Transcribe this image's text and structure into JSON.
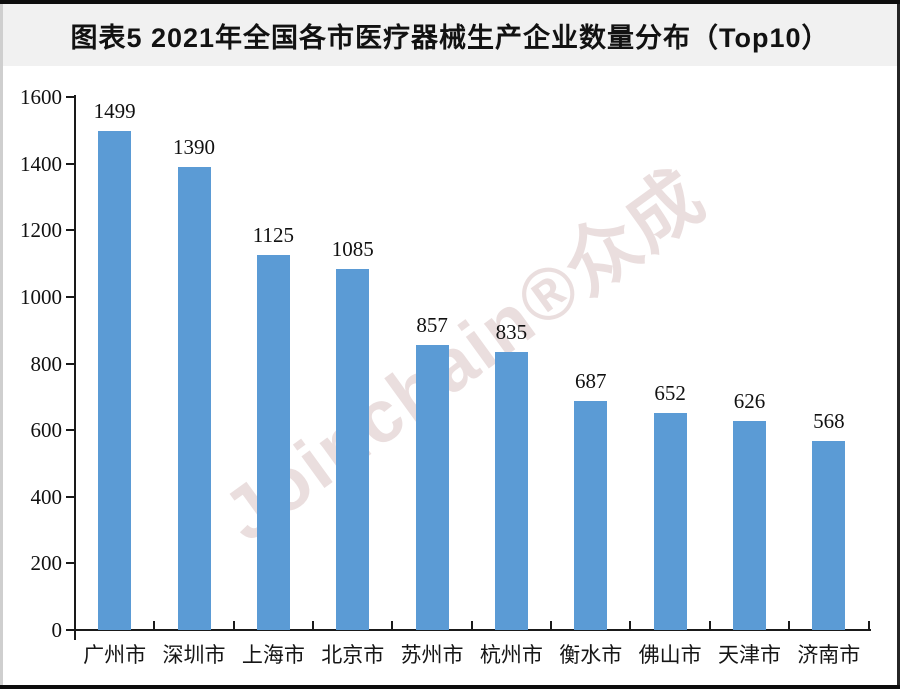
{
  "page": {
    "header_title": "图表5 2021年全国各市医疗器械生产企业数量分布（Top10）",
    "watermark": "Joinchain®众成",
    "header_background": "#f1f1f1",
    "background": "#ffffff"
  },
  "chart_data": {
    "type": "bar",
    "title": "图表5 2021年全国各市医疗器械生产企业数量分布（Top10）",
    "categories": [
      "广州市",
      "深圳市",
      "上海市",
      "北京市",
      "苏州市",
      "杭州市",
      "衡水市",
      "佛山市",
      "天津市",
      "济南市"
    ],
    "values": [
      1499,
      1390,
      1125,
      1085,
      857,
      835,
      687,
      652,
      626,
      568
    ],
    "ylim": [
      0,
      1600
    ],
    "yticks": [
      0,
      200,
      400,
      600,
      800,
      1000,
      1200,
      1400,
      1600
    ],
    "xlabel": "",
    "ylabel": "",
    "grid": false,
    "legend": "none",
    "bar_color": "#5b9bd5",
    "value_labels_shown": true,
    "axis_color": "#1a1a1a"
  }
}
